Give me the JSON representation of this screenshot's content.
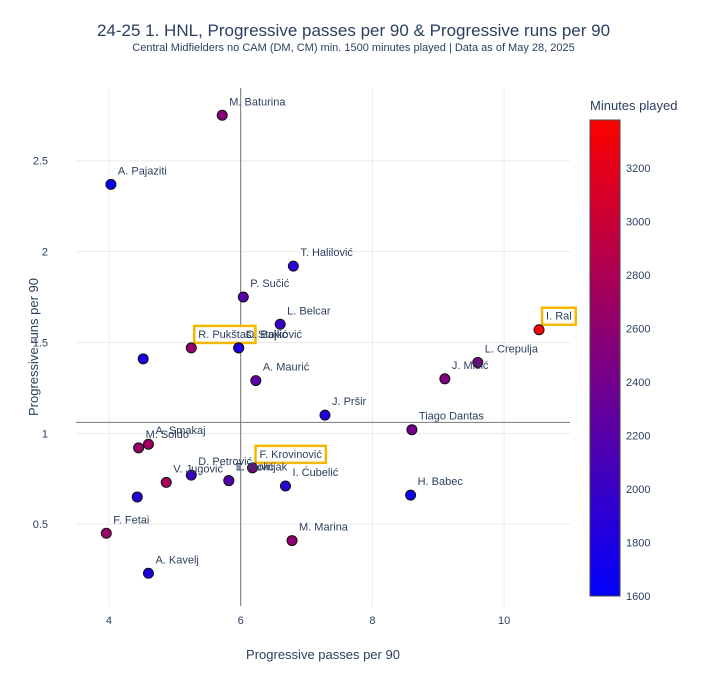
{
  "title": "24-25 1. HNL, Progressive passes per 90 & Progressive runs per 90",
  "subtitle": "Central Midfielders no CAM (DM, CM) min. 1500 minutes played | Data as of May 28, 2025",
  "chart_data": {
    "type": "scatter",
    "xlabel": "Progressive passes per 90",
    "ylabel": "Progressive runs per 90",
    "xlim": [
      3.5,
      11.0
    ],
    "ylim": [
      0.05,
      2.9
    ],
    "xticks": [
      4,
      6,
      8,
      10
    ],
    "yticks": [
      0.5,
      1,
      1.5,
      2,
      2.5
    ],
    "reference_lines": {
      "x": 6.0,
      "y": 1.06
    },
    "colorbar": {
      "title": "Minutes played",
      "range": [
        1600,
        3380
      ],
      "ticks": [
        1600,
        1800,
        2000,
        2200,
        2400,
        2600,
        2800,
        3000,
        3200
      ],
      "colorscale": [
        "#0000ff",
        "#ff0000"
      ]
    },
    "grid": true,
    "points": [
      {
        "name": "M. Baturina",
        "x": 5.72,
        "y": 2.75,
        "minutes": 2550
      },
      {
        "name": "A. Pajaziti",
        "x": 4.03,
        "y": 2.37,
        "minutes": 1650
      },
      {
        "name": "T. Halilović",
        "x": 6.8,
        "y": 1.92,
        "minutes": 1900
      },
      {
        "name": "P. Sučić",
        "x": 6.04,
        "y": 1.75,
        "minutes": 2200
      },
      {
        "name": "L. Belcar",
        "x": 6.6,
        "y": 1.6,
        "minutes": 2000
      },
      {
        "name": "O. Bakić",
        "x": 5.97,
        "y": 1.47,
        "minutes": 1800
      },
      {
        "name": "L. Stojković",
        "x": 5.97,
        "y": 1.47,
        "minutes": 1800
      },
      {
        "name": "R. Pukštas",
        "x": 5.25,
        "y": 1.47,
        "minutes": 2650,
        "highlight": true
      },
      {
        "name": "",
        "x": 4.52,
        "y": 1.41,
        "minutes": 1750
      },
      {
        "name": "I. Ral",
        "x": 10.53,
        "y": 1.57,
        "minutes": 3350,
        "highlight": true
      },
      {
        "name": "L. Crepulja",
        "x": 9.6,
        "y": 1.39,
        "minutes": 2450
      },
      {
        "name": "J. Mišić",
        "x": 9.1,
        "y": 1.3,
        "minutes": 2500
      },
      {
        "name": "A. Maurić",
        "x": 6.23,
        "y": 1.29,
        "minutes": 2250
      },
      {
        "name": "J. Pršir",
        "x": 7.28,
        "y": 1.1,
        "minutes": 1800
      },
      {
        "name": "Tiago Dantas",
        "x": 8.6,
        "y": 1.02,
        "minutes": 2400
      },
      {
        "name": "A. Smakaj",
        "x": 4.6,
        "y": 0.94,
        "minutes": 2700
      },
      {
        "name": "M. Soldo",
        "x": 4.45,
        "y": 0.92,
        "minutes": 2650
      },
      {
        "name": "F. Krovinović",
        "x": 6.18,
        "y": 0.81,
        "minutes": 2500,
        "highlight": true
      },
      {
        "name": "T. Duvnjak",
        "x": 5.82,
        "y": 0.74,
        "minutes": 2200
      },
      {
        "name": "L. Fiolić",
        "x": 5.82,
        "y": 0.74,
        "minutes": 2200
      },
      {
        "name": "D. Petrović",
        "x": 5.25,
        "y": 0.77,
        "minutes": 2000
      },
      {
        "name": "V. Jugović",
        "x": 4.87,
        "y": 0.73,
        "minutes": 2750
      },
      {
        "name": "",
        "x": 4.43,
        "y": 0.65,
        "minutes": 1850
      },
      {
        "name": "I. Ćubelić",
        "x": 6.68,
        "y": 0.71,
        "minutes": 1900
      },
      {
        "name": "H. Babec",
        "x": 8.58,
        "y": 0.66,
        "minutes": 1700
      },
      {
        "name": "F. Fetai",
        "x": 3.96,
        "y": 0.45,
        "minutes": 2650
      },
      {
        "name": "M. Marina",
        "x": 6.78,
        "y": 0.41,
        "minutes": 2600
      },
      {
        "name": "A. Kavelj",
        "x": 4.6,
        "y": 0.23,
        "minutes": 1800
      }
    ]
  }
}
